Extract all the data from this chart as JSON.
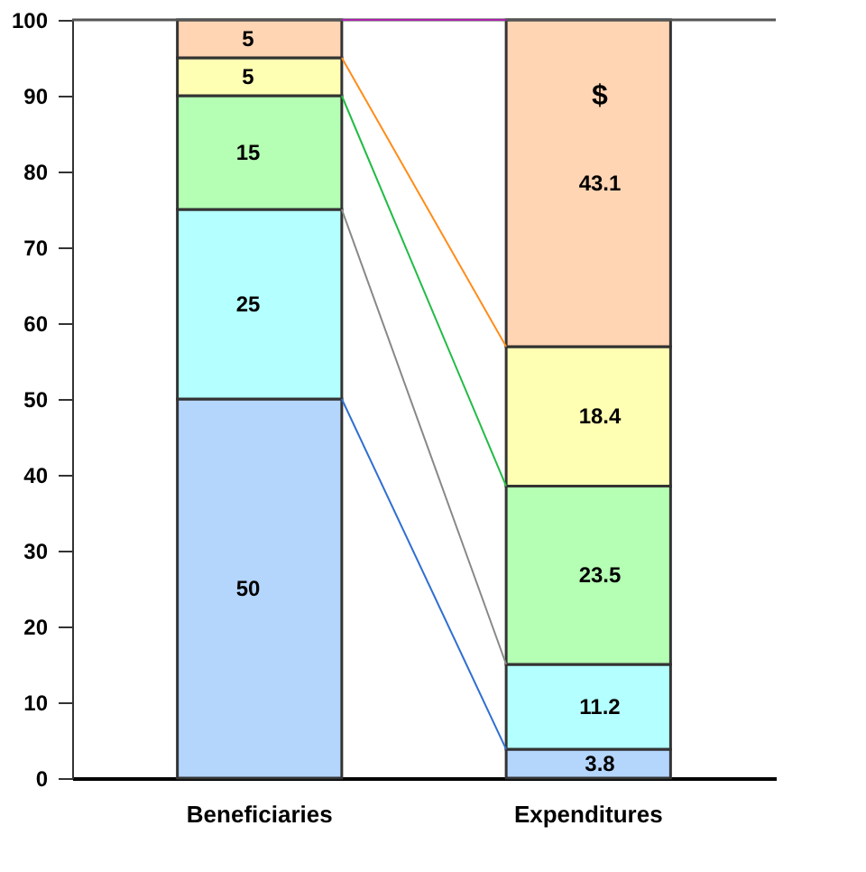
{
  "chart_data": {
    "type": "bar",
    "stacked": true,
    "data_labels": true,
    "categories": [
      "Beneficiaries",
      "Expenditures"
    ],
    "series": [
      {
        "color": "#b4d5fc",
        "values": [
          50,
          3.8
        ]
      },
      {
        "color": "#b4ffff",
        "values": [
          25,
          11.2
        ]
      },
      {
        "color": "#b4ffb4",
        "values": [
          15,
          23.5
        ]
      },
      {
        "color": "#ffffb4",
        "values": [
          5,
          18.4
        ]
      },
      {
        "color": "#ffd5b4",
        "values": [
          5,
          43.1
        ]
      }
    ],
    "ylim": [
      0,
      100
    ],
    "yticks": [
      0,
      10,
      20,
      30,
      40,
      50,
      60,
      70,
      80,
      90,
      100
    ],
    "grid": false,
    "legend": false,
    "annotations": [
      "$"
    ]
  }
}
